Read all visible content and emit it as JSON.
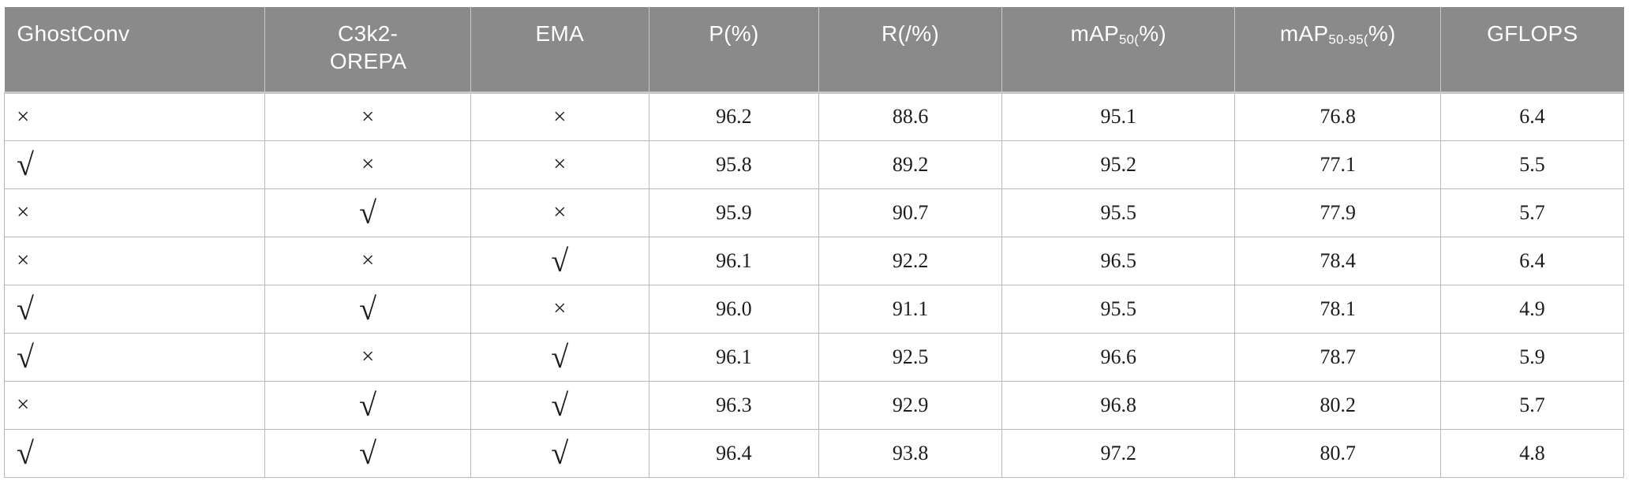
{
  "colors": {
    "header_bg": "#8a8a8a",
    "header_text": "#ffffff",
    "body_text": "#1c1c1c",
    "grid": "#b9b9b9",
    "grid_under_header": "#c6c6c6"
  },
  "table": {
    "header": [
      {
        "text": "GhostConv"
      },
      {
        "text": "C3k2-OREPA"
      },
      {
        "text": "EMA"
      },
      {
        "text": "P(%)"
      },
      {
        "text": "R(/%)"
      },
      {
        "pre": "mAP",
        "sub": "50(",
        "post": "%)"
      },
      {
        "pre": "mAP",
        "sub": "50-95(",
        "post": "%)"
      },
      {
        "text": "GFLOPS"
      }
    ],
    "rows": [
      {
        "cells": [
          "×",
          "×",
          "×",
          "96.2",
          "88.6",
          "95.1",
          "76.8",
          "6.4"
        ]
      },
      {
        "cells": [
          "√",
          "×",
          "×",
          "95.8",
          "89.2",
          "95.2",
          "77.1",
          "5.5"
        ]
      },
      {
        "cells": [
          "×",
          "√",
          "×",
          "95.9",
          "90.7",
          "95.5",
          "77.9",
          "5.7"
        ]
      },
      {
        "cells": [
          "×",
          "×",
          "√",
          "96.1",
          "92.2",
          "96.5",
          "78.4",
          "6.4"
        ]
      },
      {
        "cells": [
          "√",
          "√",
          "×",
          "96.0",
          "91.1",
          "95.5",
          "78.1",
          "4.9"
        ]
      },
      {
        "cells": [
          "√",
          "×",
          "√",
          "96.1",
          "92.5",
          "96.6",
          "78.7",
          "5.9"
        ]
      },
      {
        "cells": [
          "×",
          "√",
          "√",
          "96.3",
          "92.9",
          "96.8",
          "80.2",
          "5.7"
        ]
      },
      {
        "cells": [
          "√",
          "√",
          "√",
          "96.4",
          "93.8",
          "97.2",
          "80.7",
          "4.8"
        ]
      }
    ]
  },
  "chart_data": {
    "type": "table",
    "columns": [
      "GhostConv",
      "C3k2-OREPA",
      "EMA",
      "P(%)",
      "R(/%)",
      "mAP50(%)",
      "mAP50-95(%)",
      "GFLOPS"
    ],
    "rows": [
      [
        "×",
        "×",
        "×",
        96.2,
        88.6,
        95.1,
        76.8,
        6.4
      ],
      [
        "√",
        "×",
        "×",
        95.8,
        89.2,
        95.2,
        77.1,
        5.5
      ],
      [
        "×",
        "√",
        "×",
        95.9,
        90.7,
        95.5,
        77.9,
        5.7
      ],
      [
        "×",
        "×",
        "√",
        96.1,
        92.2,
        96.5,
        78.4,
        6.4
      ],
      [
        "√",
        "√",
        "×",
        96.0,
        91.1,
        95.5,
        78.1,
        4.9
      ],
      [
        "√",
        "×",
        "√",
        96.1,
        92.5,
        96.6,
        78.7,
        5.9
      ],
      [
        "×",
        "√",
        "√",
        96.3,
        92.9,
        96.8,
        80.2,
        5.7
      ],
      [
        "√",
        "√",
        "√",
        96.4,
        93.8,
        97.2,
        80.7,
        4.8
      ]
    ]
  }
}
